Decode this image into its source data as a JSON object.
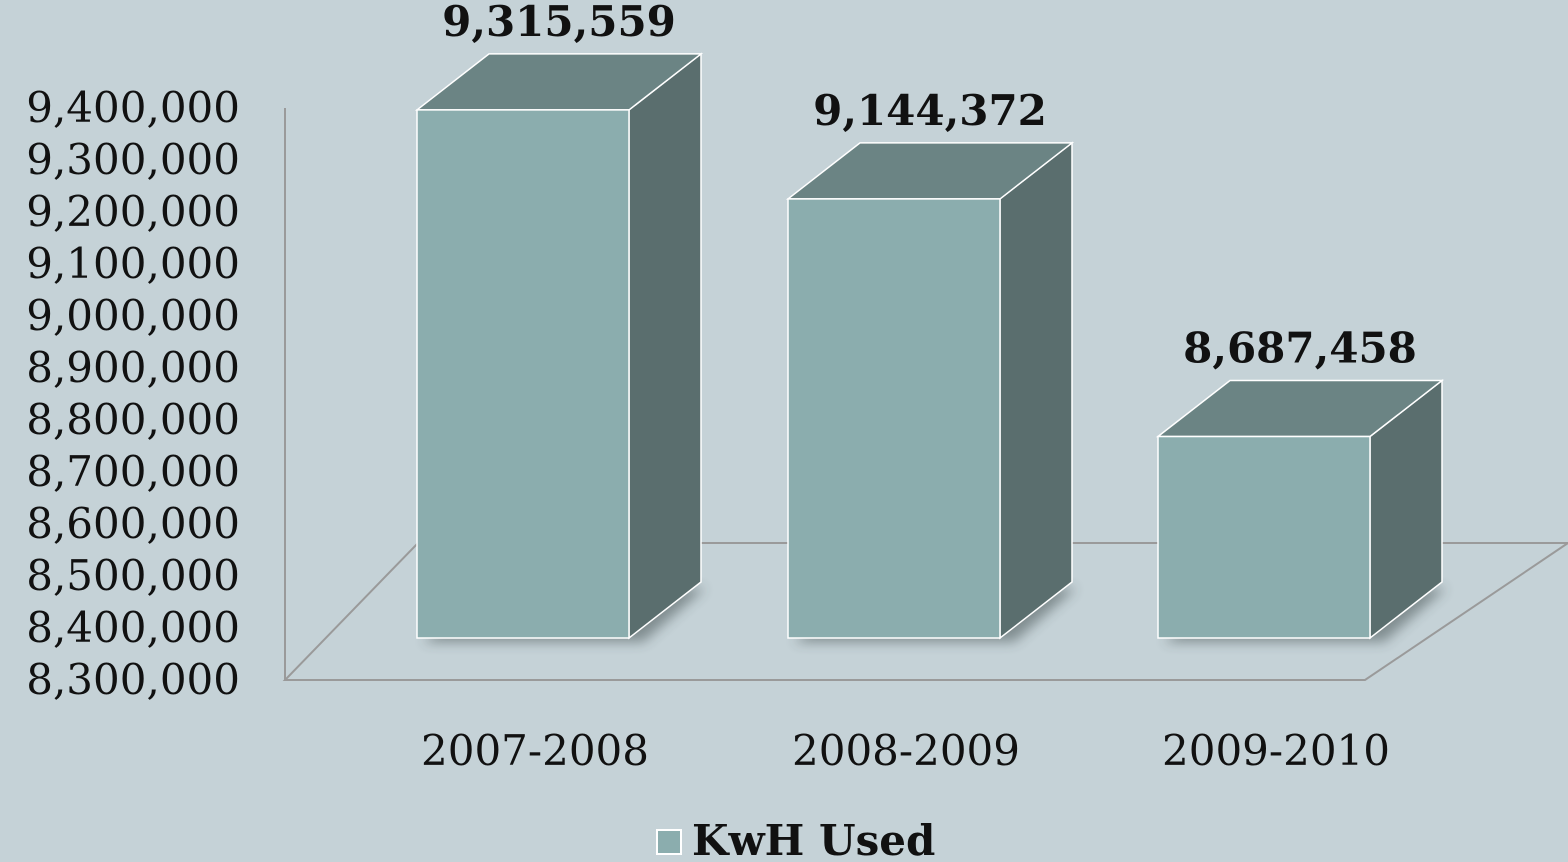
{
  "chart_data": {
    "type": "bar",
    "title": "",
    "xlabel": "",
    "ylabel": "",
    "categories": [
      "2007-2008",
      "2008-2009",
      "2009-2010"
    ],
    "series": [
      {
        "name": "KwH Used",
        "values": [
          9315559,
          9144372,
          8687458
        ],
        "labels": [
          "9,315,559",
          "9,144,372",
          "8,687,458"
        ]
      }
    ],
    "y_ticks": [
      "8,300,000",
      "8,400,000",
      "8,500,000",
      "8,600,000",
      "8,700,000",
      "8,800,000",
      "8,900,000",
      "9,000,000",
      "9,100,000",
      "9,200,000",
      "9,300,000",
      "9,400,000"
    ],
    "ylim": [
      8300000,
      9400000
    ],
    "grid": false,
    "legend_position": "bottom",
    "three_d": true,
    "colors": {
      "background": "#c5d2d7",
      "bar_front": "#8badae",
      "bar_top": "#6b8484",
      "bar_side": "#5a6e6e",
      "axis": "#999999"
    }
  }
}
